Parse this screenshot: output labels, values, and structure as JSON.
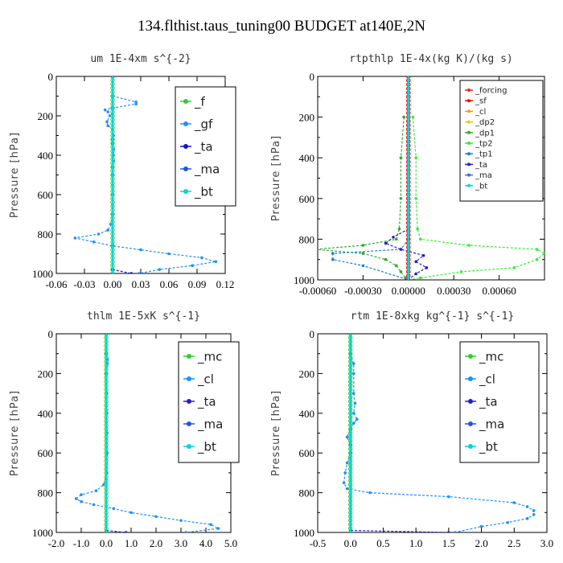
{
  "title": "134.flthist.taus_tuning00  BUDGET at140E,2N",
  "chart_data": [
    {
      "type": "line",
      "title": "um   1E-4xm s^{-2}",
      "ylabel": "Pressure [hPa]",
      "xlim": [
        -0.06,
        0.12
      ],
      "ylim": [
        1000,
        0
      ],
      "xticks": [
        "-0.06",
        "-0.03",
        "0.00",
        "0.03",
        "0.06",
        "0.09",
        "0.12"
      ],
      "yticks": [
        "0",
        "200",
        "400",
        "600",
        "800",
        "1000"
      ],
      "legend_position": "top-right",
      "series": [
        {
          "name": "_f",
          "color": "#33cc33",
          "y": [
            0,
            1000
          ],
          "x": [
            0.0,
            0.0
          ]
        },
        {
          "name": "_gf",
          "color": "#1e90ff",
          "y": [
            100,
            130,
            140,
            160,
            170,
            180,
            190,
            200,
            230,
            250,
            270,
            300,
            320,
            340,
            370,
            400,
            430,
            460,
            500,
            550,
            600,
            650,
            700,
            750,
            780,
            800,
            820,
            840,
            860,
            880,
            900,
            920,
            940,
            960,
            980,
            1000
          ],
          "x": [
            0.0,
            0.025,
            0.025,
            0.0,
            -0.008,
            -0.005,
            0.0,
            -0.003,
            -0.006,
            -0.005,
            0.0,
            0.001,
            0.0,
            0.0,
            0.001,
            0.001,
            0.001,
            0.0,
            0.0,
            0.0,
            0.0,
            0.0,
            0.0,
            -0.002,
            -0.005,
            -0.015,
            -0.04,
            -0.02,
            0.0,
            0.03,
            0.06,
            0.095,
            0.11,
            0.085,
            0.05,
            0.028
          ]
        },
        {
          "name": "_ta",
          "color": "#1515cc",
          "y": [
            0,
            980,
            1000
          ],
          "x": [
            0.0,
            0.0,
            0.02
          ]
        },
        {
          "name": "_ma",
          "color": "#2255dd",
          "y": [
            0,
            1000
          ],
          "x": [
            0.0,
            0.0
          ]
        },
        {
          "name": "_bt",
          "color": "#00d8d8",
          "y": [
            0,
            1000
          ],
          "x": [
            0.0,
            0.0
          ]
        }
      ]
    },
    {
      "type": "line",
      "title": "rtpthlp   1E-4x(kg K)/(kg s)",
      "ylabel": "Pressure [hPa]",
      "xlim": [
        -0.0006,
        0.0009
      ],
      "ylim": [
        1000,
        0
      ],
      "xticks": [
        "-0.00060",
        "-0.00030",
        "0.00000",
        "0.00030",
        "0.00060"
      ],
      "yticks": [
        "0",
        "200",
        "400",
        "600",
        "800",
        "1000"
      ],
      "legend_position": "top-right",
      "series": [
        {
          "name": "_forcing",
          "color": "#ff2020",
          "y": [
            0,
            1000
          ],
          "x": [
            0.0,
            0.0
          ]
        },
        {
          "name": "_sf",
          "color": "#ff0000",
          "y": [
            0,
            1000
          ],
          "x": [
            0.0,
            0.0
          ]
        },
        {
          "name": "_cl",
          "color": "#ff9900",
          "y": [
            0,
            1000
          ],
          "x": [
            0.0,
            0.0
          ]
        },
        {
          "name": "_dp2",
          "color": "#ddd400",
          "y": [
            0,
            1000
          ],
          "x": [
            0.0,
            0.0
          ]
        },
        {
          "name": "_dp1",
          "color": "#2eaa2e",
          "y": [
            200,
            400,
            600,
            750,
            800,
            830,
            850,
            870,
            900,
            930,
            960,
            990,
            1000
          ],
          "x": [
            -3e-05,
            -5e-05,
            -5e-05,
            -6e-05,
            -8e-05,
            -0.0003,
            -0.00062,
            -0.0003,
            -0.00015,
            -8e-05,
            -5e-05,
            -2e-05,
            0.0
          ]
        },
        {
          "name": "_tp2",
          "color": "#33ee33",
          "y": [
            200,
            400,
            600,
            750,
            800,
            830,
            850,
            870,
            900,
            940,
            960,
            990,
            1000
          ],
          "x": [
            3e-05,
            5e-05,
            5e-05,
            6e-05,
            8e-05,
            0.0004,
            0.00085,
            0.0009,
            0.00085,
            0.0007,
            0.00035,
            8e-05,
            0.0
          ]
        },
        {
          "name": "_tp1",
          "color": "#1a7fd0",
          "y": [
            800,
            850,
            870,
            900,
            930,
            1000
          ],
          "x": [
            0.0,
            -5e-05,
            -0.0005,
            -0.0005,
            -0.0003,
            0.0
          ]
        },
        {
          "name": "_ta",
          "color": "#2020cc",
          "y": [
            750,
            790,
            820,
            850,
            880,
            910,
            940,
            970,
            1000
          ],
          "x": [
            0.0,
            -0.0001,
            -0.00015,
            -5e-05,
            0.0001,
            5e-05,
            0.00012,
            5e-05,
            0.0
          ]
        },
        {
          "name": "_ma",
          "color": "#4466ee",
          "y": [
            0,
            1000
          ],
          "x": [
            0.0,
            0.0
          ]
        },
        {
          "name": "_bt",
          "color": "#00d8d8",
          "y": [
            0,
            1000
          ],
          "x": [
            0.0,
            0.0
          ]
        }
      ]
    },
    {
      "type": "line",
      "title": "thlm   1E-5xK s^{-1}",
      "ylabel": "Pressure [hPa]",
      "xlim": [
        -2.0,
        5.0
      ],
      "ylim": [
        1000,
        0
      ],
      "xticks": [
        "-2.0",
        "-1.0",
        "0.0",
        "1.0",
        "2.0",
        "3.0",
        "4.0",
        "5.0"
      ],
      "yticks": [
        "0",
        "200",
        "400",
        "600",
        "800",
        "1000"
      ],
      "legend_position": "top-right",
      "series": [
        {
          "name": "_mc",
          "color": "#33cc33",
          "y": [
            0,
            1000
          ],
          "x": [
            0.0,
            0.0
          ]
        },
        {
          "name": "_cl",
          "color": "#1e90ff",
          "y": [
            100,
            130,
            150,
            200,
            300,
            400,
            500,
            600,
            700,
            760,
            790,
            810,
            830,
            845,
            860,
            880,
            900,
            920,
            940,
            960,
            980,
            1000
          ],
          "x": [
            0.0,
            0.05,
            0.05,
            0.0,
            0.02,
            0.03,
            0.04,
            0.05,
            0.03,
            -0.1,
            -0.4,
            -1.0,
            -1.2,
            -1.0,
            -0.5,
            0.3,
            1.0,
            2.0,
            3.0,
            4.2,
            4.5,
            3.2
          ]
        },
        {
          "name": "_ta",
          "color": "#2020cc",
          "y": [
            0,
            990,
            1000
          ],
          "x": [
            0.0,
            0.0,
            0.8
          ]
        },
        {
          "name": "_ma",
          "color": "#2255dd",
          "y": [
            0,
            1000
          ],
          "x": [
            0.0,
            0.0
          ]
        },
        {
          "name": "_bt",
          "color": "#00d8d8",
          "y": [
            0,
            1000
          ],
          "x": [
            0.0,
            0.0
          ]
        }
      ]
    },
    {
      "type": "line",
      "title": "rtm   1E-8xkg kg^{-1} s^{-1}",
      "ylabel": "Pressure [hPa]",
      "xlim": [
        -0.5,
        3.0
      ],
      "ylim": [
        1000,
        0
      ],
      "xticks": [
        "-0.5",
        "0.0",
        "0.5",
        "1.0",
        "1.5",
        "2.0",
        "2.5",
        "3.0"
      ],
      "yticks": [
        "0",
        "200",
        "400",
        "600",
        "800",
        "1000"
      ],
      "legend_position": "top-right",
      "series": [
        {
          "name": "_mc",
          "color": "#33cc33",
          "y": [
            0,
            1000
          ],
          "x": [
            0.0,
            0.0
          ]
        },
        {
          "name": "_cl",
          "color": "#1e90ff",
          "y": [
            100,
            150,
            200,
            300,
            350,
            400,
            430,
            450,
            480,
            520,
            560,
            600,
            650,
            700,
            750,
            780,
            800,
            820,
            850,
            870,
            890,
            910,
            930,
            950,
            970,
            1000
          ],
          "x": [
            0.0,
            0.05,
            0.05,
            0.05,
            0.07,
            0.05,
            0.1,
            0.05,
            0.0,
            -0.05,
            0.0,
            0.0,
            -0.05,
            -0.08,
            -0.1,
            -0.05,
            0.3,
            1.5,
            2.5,
            2.7,
            2.8,
            2.8,
            2.7,
            2.4,
            2.0,
            1.6
          ]
        },
        {
          "name": "_ta",
          "color": "#2020cc",
          "y": [
            0,
            990,
            1000
          ],
          "x": [
            0.0,
            0.0,
            1.5
          ]
        },
        {
          "name": "_ma",
          "color": "#2255dd",
          "y": [
            0,
            1000
          ],
          "x": [
            0.0,
            0.0
          ]
        },
        {
          "name": "_bt",
          "color": "#00d8d8",
          "y": [
            0,
            1000
          ],
          "x": [
            0.0,
            0.0
          ]
        }
      ]
    }
  ]
}
